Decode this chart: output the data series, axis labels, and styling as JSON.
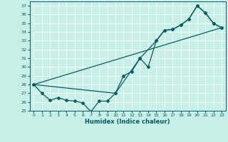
{
  "xlabel": "Humidex (Indice chaleur)",
  "ylabel": "",
  "xlim": [
    -0.5,
    23.5
  ],
  "ylim": [
    25,
    37.5
  ],
  "yticks": [
    25,
    26,
    27,
    28,
    29,
    30,
    31,
    32,
    33,
    34,
    35,
    36,
    37
  ],
  "xticks": [
    0,
    1,
    2,
    3,
    4,
    5,
    6,
    7,
    8,
    9,
    10,
    11,
    12,
    13,
    14,
    15,
    16,
    17,
    18,
    19,
    20,
    21,
    22,
    23
  ],
  "bg_color": "#c8eee8",
  "line_color": "#006060",
  "series1_x": [
    0,
    1,
    2,
    3,
    4,
    5,
    6,
    7,
    8,
    9,
    10,
    11,
    12,
    13,
    14,
    15,
    16,
    17,
    18,
    19,
    20,
    21,
    22,
    23
  ],
  "series1_y": [
    28.0,
    27.0,
    26.2,
    26.5,
    26.2,
    26.1,
    25.9,
    24.9,
    26.1,
    26.1,
    27.0,
    29.0,
    29.5,
    31.0,
    30.0,
    33.0,
    34.2,
    34.3,
    34.8,
    35.5,
    37.0,
    36.2,
    35.0,
    34.5
  ],
  "series2_x": [
    0,
    10,
    13,
    15,
    16,
    17,
    18,
    19,
    20,
    21,
    22,
    23
  ],
  "series2_y": [
    28.0,
    27.0,
    31.0,
    33.0,
    34.2,
    34.3,
    34.8,
    35.5,
    37.0,
    36.2,
    35.0,
    34.5
  ],
  "series3_x": [
    0,
    23
  ],
  "series3_y": [
    28.0,
    34.5
  ]
}
